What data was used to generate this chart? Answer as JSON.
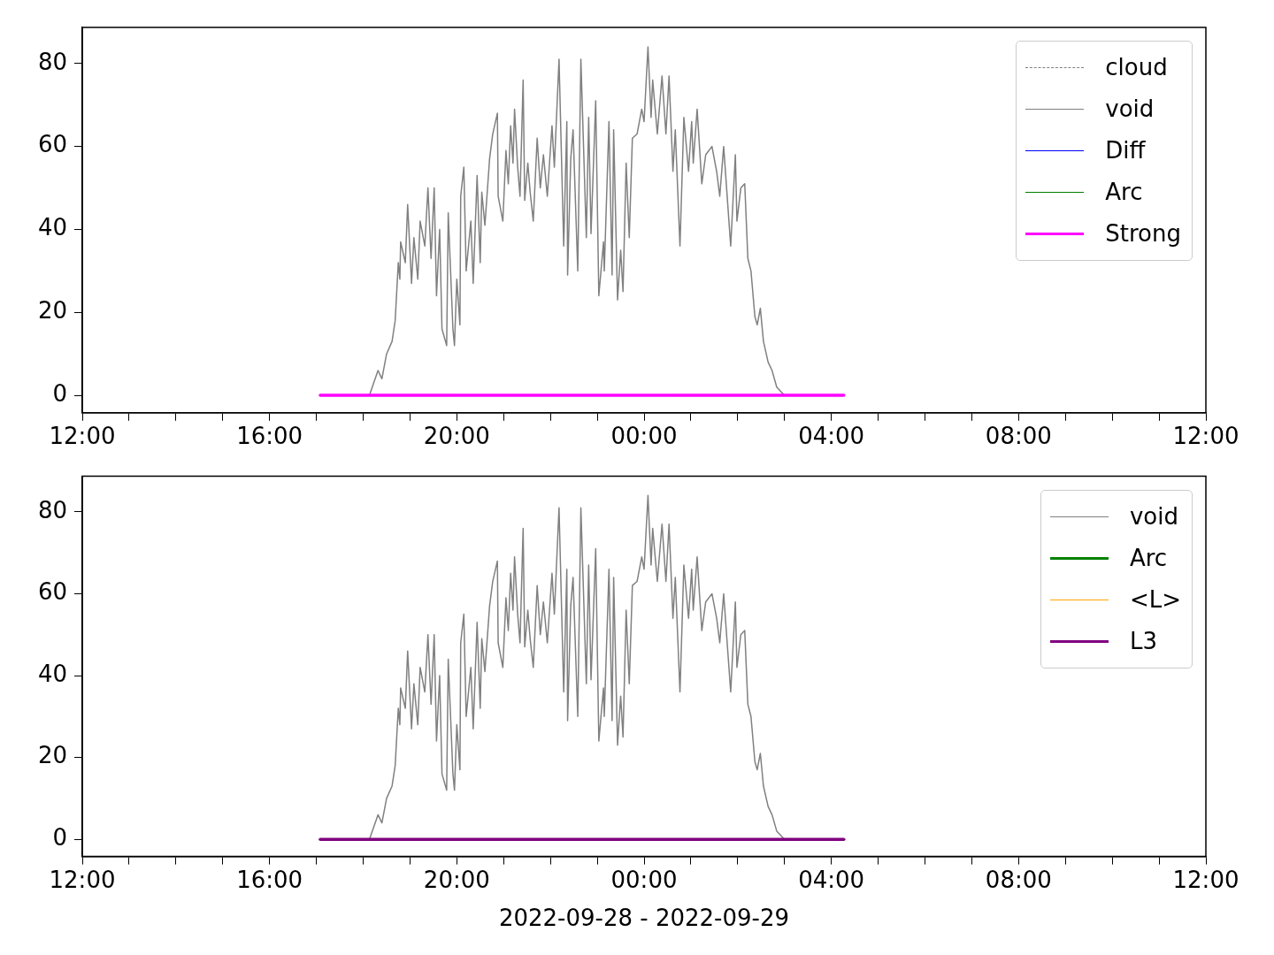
{
  "chart_data": [
    {
      "type": "line",
      "xlim": [
        "2022-09-28T12:00",
        "2022-09-29T12:00"
      ],
      "ylim": [
        -4.2,
        88.7
      ],
      "xticks": [
        {
          "value": "2022-09-28T12:00",
          "label": "12:00"
        },
        {
          "value": "2022-09-28T13:00",
          "label": null
        },
        {
          "value": "2022-09-28T14:00",
          "label": null
        },
        {
          "value": "2022-09-28T15:00",
          "label": null
        },
        {
          "value": "2022-09-28T16:00",
          "label": "16:00"
        },
        {
          "value": "2022-09-28T17:00",
          "label": null
        },
        {
          "value": "2022-09-28T18:00",
          "label": null
        },
        {
          "value": "2022-09-28T19:00",
          "label": null
        },
        {
          "value": "2022-09-28T20:00",
          "label": "20:00"
        },
        {
          "value": "2022-09-28T21:00",
          "label": null
        },
        {
          "value": "2022-09-28T22:00",
          "label": null
        },
        {
          "value": "2022-09-28T23:00",
          "label": null
        },
        {
          "value": "2022-09-29T00:00",
          "label": "00:00"
        },
        {
          "value": "2022-09-29T01:00",
          "label": null
        },
        {
          "value": "2022-09-29T02:00",
          "label": null
        },
        {
          "value": "2022-09-29T03:00",
          "label": null
        },
        {
          "value": "2022-09-29T04:00",
          "label": "04:00"
        },
        {
          "value": "2022-09-29T05:00",
          "label": null
        },
        {
          "value": "2022-09-29T06:00",
          "label": null
        },
        {
          "value": "2022-09-29T07:00",
          "label": null
        },
        {
          "value": "2022-09-29T08:00",
          "label": "08:00"
        },
        {
          "value": "2022-09-29T09:00",
          "label": null
        },
        {
          "value": "2022-09-29T10:00",
          "label": null
        },
        {
          "value": "2022-09-29T11:00",
          "label": null
        },
        {
          "value": "2022-09-29T12:00",
          "label": "12:00"
        }
      ],
      "yticks": [
        0,
        20,
        40,
        60,
        80
      ],
      "legend": "top right",
      "x": [
        "2022-09-28T18:08",
        "2022-09-28T18:19",
        "2022-09-28T18:24",
        "2022-09-28T18:30",
        "2022-09-28T18:37",
        "2022-09-28T18:41",
        "2022-09-28T18:45",
        "2022-09-28T18:47",
        "2022-09-28T18:48",
        "2022-09-28T18:54",
        "2022-09-28T18:57",
        "2022-09-28T19:02",
        "2022-09-28T19:05",
        "2022-09-28T19:10",
        "2022-09-28T19:13",
        "2022-09-28T19:19",
        "2022-09-28T19:23",
        "2022-09-28T19:27",
        "2022-09-28T19:31",
        "2022-09-28T19:34",
        "2022-09-28T19:38",
        "2022-09-28T19:41",
        "2022-09-28T19:47",
        "2022-09-28T19:49",
        "2022-09-28T19:55",
        "2022-09-28T19:57",
        "2022-09-28T20:00",
        "2022-09-28T20:04",
        "2022-09-28T20:05",
        "2022-09-28T20:09",
        "2022-09-28T20:12",
        "2022-09-28T20:18",
        "2022-09-28T20:21",
        "2022-09-28T20:26",
        "2022-09-28T20:30",
        "2022-09-28T20:32",
        "2022-09-28T20:36",
        "2022-09-28T20:42",
        "2022-09-28T20:46",
        "2022-09-28T20:52",
        "2022-09-28T20:53",
        "2022-09-28T20:59",
        "2022-09-28T21:03",
        "2022-09-28T21:06",
        "2022-09-28T21:09",
        "2022-09-28T21:12",
        "2022-09-28T21:14",
        "2022-09-28T21:18",
        "2022-09-28T21:21",
        "2022-09-28T21:25",
        "2022-09-28T21:27",
        "2022-09-28T21:31",
        "2022-09-28T21:34",
        "2022-09-28T21:38",
        "2022-09-28T21:43",
        "2022-09-28T21:47",
        "2022-09-28T21:51",
        "2022-09-28T21:56",
        "2022-09-28T22:02",
        "2022-09-28T22:05",
        "2022-09-28T22:11",
        "2022-09-28T22:17",
        "2022-09-28T22:21",
        "2022-09-28T22:22",
        "2022-09-28T22:26",
        "2022-09-28T22:29",
        "2022-09-28T22:35",
        "2022-09-28T22:39",
        "2022-09-28T22:46",
        "2022-09-28T22:49",
        "2022-09-28T22:52",
        "2022-09-28T22:58",
        "2022-09-28T23:02",
        "2022-09-28T23:08",
        "2022-09-28T23:09",
        "2022-09-28T23:15",
        "2022-09-28T23:19",
        "2022-09-28T23:21",
        "2022-09-28T23:26",
        "2022-09-28T23:30",
        "2022-09-28T23:33",
        "2022-09-28T23:37",
        "2022-09-28T23:41",
        "2022-09-28T23:45",
        "2022-09-28T23:51",
        "2022-09-28T23:57",
        "2022-09-29T00:00",
        "2022-09-29T00:05",
        "2022-09-29T00:09",
        "2022-09-29T00:11",
        "2022-09-29T00:17",
        "2022-09-29T00:23",
        "2022-09-29T00:28",
        "2022-09-29T00:32",
        "2022-09-29T00:37",
        "2022-09-29T00:40",
        "2022-09-29T00:46",
        "2022-09-29T00:51",
        "2022-09-29T00:57",
        "2022-09-29T01:01",
        "2022-09-29T01:03",
        "2022-09-29T01:08",
        "2022-09-29T01:14",
        "2022-09-29T01:19",
        "2022-09-29T01:27",
        "2022-09-29T01:33",
        "2022-09-29T01:37",
        "2022-09-29T01:42",
        "2022-09-29T01:51",
        "2022-09-29T01:57",
        "2022-09-29T01:59",
        "2022-09-29T02:04",
        "2022-09-29T02:09",
        "2022-09-29T02:13",
        "2022-09-29T02:17",
        "2022-09-29T02:22",
        "2022-09-29T02:25",
        "2022-09-29T02:29",
        "2022-09-29T02:33",
        "2022-09-29T02:39",
        "2022-09-29T02:44",
        "2022-09-29T02:50",
        "2022-09-29T02:55",
        "2022-09-29T03:00"
      ],
      "series": [
        {
          "name": "cloud",
          "color": "#808080",
          "line_style": "dashed",
          "values": [
            null,
            null,
            null,
            null,
            null,
            null,
            null,
            null,
            null,
            null,
            null,
            null,
            null,
            null,
            null,
            null,
            null,
            null,
            null,
            null,
            null,
            null,
            null,
            null,
            null,
            null,
            null,
            null,
            null,
            null,
            null,
            null,
            null,
            null,
            null,
            null,
            null,
            null,
            null,
            null,
            null,
            null,
            null,
            null,
            null,
            null,
            null,
            null,
            null,
            null,
            null,
            null,
            null,
            null,
            null,
            null,
            null,
            null,
            null,
            null,
            null,
            null,
            null,
            null,
            null,
            null,
            null,
            null,
            null,
            null,
            null,
            null,
            null,
            null,
            null,
            null,
            null,
            null,
            null,
            null,
            null,
            null,
            null,
            null,
            null,
            null,
            null,
            null,
            null,
            null,
            null,
            null,
            null,
            null,
            null,
            null,
            null,
            null,
            null,
            null,
            null,
            null,
            null,
            null,
            null,
            null,
            null,
            null,
            null,
            null,
            null,
            null,
            null,
            null,
            null,
            null,
            null,
            null,
            null,
            null,
            null,
            null,
            null,
            null
          ]
        },
        {
          "name": "void",
          "color": "#808080",
          "values": [
            0,
            6,
            4,
            10,
            13,
            18,
            32,
            28,
            37,
            32,
            46,
            27,
            38,
            28,
            42,
            36,
            50,
            33,
            50,
            24,
            40,
            16,
            12,
            44,
            16,
            12,
            28,
            17,
            48,
            55,
            30,
            42,
            27,
            53,
            32,
            49,
            41,
            57,
            63,
            68,
            48,
            42,
            59,
            51,
            65,
            56,
            69,
            55,
            48,
            76,
            47,
            56,
            49,
            42,
            62,
            50,
            58,
            48,
            65,
            55,
            81,
            36,
            66,
            29,
            57,
            64,
            30,
            81,
            38,
            67,
            39,
            71,
            24,
            37,
            30,
            66,
            29,
            64,
            23,
            35,
            25,
            56,
            38,
            62,
            63,
            69,
            66,
            84,
            67,
            76,
            63,
            77,
            63,
            77,
            54,
            64,
            36,
            67,
            54,
            66,
            56,
            69,
            51,
            58,
            60,
            54,
            48,
            60,
            36,
            58,
            42,
            50,
            51,
            33,
            30,
            19,
            17,
            21,
            13,
            8,
            6,
            2,
            1,
            0
          ]
        },
        {
          "name": "Diff",
          "color": "#0000ff",
          "values": [
            null,
            null,
            null,
            null,
            null,
            null,
            null,
            null,
            null,
            null,
            null,
            null,
            null,
            null,
            null,
            null,
            null,
            null,
            null,
            null,
            null,
            null,
            null,
            null,
            null,
            null,
            null,
            null,
            null,
            null,
            null,
            null,
            null,
            null,
            null,
            null,
            null,
            null,
            null,
            null,
            null,
            null,
            null,
            null,
            null,
            null,
            null,
            null,
            null,
            null,
            null,
            null,
            null,
            null,
            null,
            null,
            null,
            null,
            null,
            null,
            null,
            null,
            null,
            null,
            null,
            null,
            null,
            null,
            null,
            null,
            null,
            null,
            null,
            null,
            null,
            null,
            null,
            null,
            null,
            null,
            null,
            null,
            null,
            null,
            null,
            null,
            null,
            null,
            null,
            null,
            null,
            null,
            null,
            null,
            null,
            null,
            null,
            null,
            null,
            null,
            null,
            null,
            null,
            null,
            null,
            null,
            null,
            null,
            null,
            null,
            null,
            null,
            null,
            null,
            null,
            null,
            null,
            null,
            null,
            null,
            null,
            null,
            null,
            null
          ]
        },
        {
          "name": "Arc",
          "color": "#008000",
          "values": [
            null,
            null,
            null,
            null,
            null,
            null,
            null,
            null,
            null,
            null,
            null,
            null,
            null,
            null,
            null,
            null,
            null,
            null,
            null,
            null,
            null,
            null,
            null,
            null,
            null,
            null,
            null,
            null,
            null,
            null,
            null,
            null,
            null,
            null,
            null,
            null,
            null,
            null,
            null,
            null,
            null,
            null,
            null,
            null,
            null,
            null,
            null,
            null,
            null,
            null,
            null,
            null,
            null,
            null,
            null,
            null,
            null,
            null,
            null,
            null,
            null,
            null,
            null,
            null,
            null,
            null,
            null,
            null,
            null,
            null,
            null,
            null,
            null,
            null,
            null,
            null,
            null,
            null,
            null,
            null,
            null,
            null,
            null,
            null,
            null,
            null,
            null,
            null,
            null,
            null,
            null,
            null,
            null,
            null,
            null,
            null,
            null,
            null,
            null,
            null,
            null,
            null,
            null,
            null,
            null,
            null,
            null,
            null,
            null,
            null,
            null,
            null,
            null,
            null,
            null,
            null,
            null,
            null,
            null,
            null,
            null,
            null,
            null,
            null
          ]
        },
        {
          "name": "Strong",
          "color": "#ff00ff",
          "x": [
            "2022-09-28T17:05",
            "2022-09-29T04:16"
          ],
          "values": [
            0,
            0
          ]
        }
      ]
    },
    {
      "type": "line",
      "xlabel": "2022-09-28 - 2022-09-29",
      "xlim": [
        "2022-09-28T12:00",
        "2022-09-29T12:00"
      ],
      "ylim": [
        -4.2,
        88.7
      ],
      "xticks": [
        {
          "value": "2022-09-28T12:00",
          "label": "12:00"
        },
        {
          "value": "2022-09-28T13:00",
          "label": null
        },
        {
          "value": "2022-09-28T14:00",
          "label": null
        },
        {
          "value": "2022-09-28T15:00",
          "label": null
        },
        {
          "value": "2022-09-28T16:00",
          "label": "16:00"
        },
        {
          "value": "2022-09-28T17:00",
          "label": null
        },
        {
          "value": "2022-09-28T18:00",
          "label": null
        },
        {
          "value": "2022-09-28T19:00",
          "label": null
        },
        {
          "value": "2022-09-28T20:00",
          "label": "20:00"
        },
        {
          "value": "2022-09-28T21:00",
          "label": null
        },
        {
          "value": "2022-09-28T22:00",
          "label": null
        },
        {
          "value": "2022-09-28T23:00",
          "label": null
        },
        {
          "value": "2022-09-29T00:00",
          "label": "00:00"
        },
        {
          "value": "2022-09-29T01:00",
          "label": null
        },
        {
          "value": "2022-09-29T02:00",
          "label": null
        },
        {
          "value": "2022-09-29T03:00",
          "label": null
        },
        {
          "value": "2022-09-29T04:00",
          "label": "04:00"
        },
        {
          "value": "2022-09-29T05:00",
          "label": null
        },
        {
          "value": "2022-09-29T06:00",
          "label": null
        },
        {
          "value": "2022-09-29T07:00",
          "label": null
        },
        {
          "value": "2022-09-29T08:00",
          "label": "08:00"
        },
        {
          "value": "2022-09-29T09:00",
          "label": null
        },
        {
          "value": "2022-09-29T10:00",
          "label": null
        },
        {
          "value": "2022-09-29T11:00",
          "label": null
        },
        {
          "value": "2022-09-29T12:00",
          "label": "12:00"
        }
      ],
      "yticks": [
        0,
        20,
        40,
        60,
        80
      ],
      "legend": "top right",
      "x": [
        "2022-09-28T18:08",
        "2022-09-28T18:19",
        "2022-09-28T18:24",
        "2022-09-28T18:30",
        "2022-09-28T18:37",
        "2022-09-28T18:41",
        "2022-09-28T18:45",
        "2022-09-28T18:47",
        "2022-09-28T18:48",
        "2022-09-28T18:54",
        "2022-09-28T18:57",
        "2022-09-28T19:02",
        "2022-09-28T19:05",
        "2022-09-28T19:10",
        "2022-09-28T19:13",
        "2022-09-28T19:19",
        "2022-09-28T19:23",
        "2022-09-28T19:27",
        "2022-09-28T19:31",
        "2022-09-28T19:34",
        "2022-09-28T19:38",
        "2022-09-28T19:41",
        "2022-09-28T19:47",
        "2022-09-28T19:49",
        "2022-09-28T19:55",
        "2022-09-28T19:57",
        "2022-09-28T20:00",
        "2022-09-28T20:04",
        "2022-09-28T20:05",
        "2022-09-28T20:09",
        "2022-09-28T20:12",
        "2022-09-28T20:18",
        "2022-09-28T20:21",
        "2022-09-28T20:26",
        "2022-09-28T20:30",
        "2022-09-28T20:32",
        "2022-09-28T20:36",
        "2022-09-28T20:42",
        "2022-09-28T20:46",
        "2022-09-28T20:52",
        "2022-09-28T20:53",
        "2022-09-28T20:59",
        "2022-09-28T21:03",
        "2022-09-28T21:06",
        "2022-09-28T21:09",
        "2022-09-28T21:12",
        "2022-09-28T21:14",
        "2022-09-28T21:18",
        "2022-09-28T21:21",
        "2022-09-28T21:25",
        "2022-09-28T21:27",
        "2022-09-28T21:31",
        "2022-09-28T21:34",
        "2022-09-28T21:38",
        "2022-09-28T21:43",
        "2022-09-28T21:47",
        "2022-09-28T21:51",
        "2022-09-28T21:56",
        "2022-09-28T22:02",
        "2022-09-28T22:05",
        "2022-09-28T22:11",
        "2022-09-28T22:17",
        "2022-09-28T22:21",
        "2022-09-28T22:22",
        "2022-09-28T22:26",
        "2022-09-28T22:29",
        "2022-09-28T22:35",
        "2022-09-28T22:39",
        "2022-09-28T22:46",
        "2022-09-28T22:49",
        "2022-09-28T22:52",
        "2022-09-28T22:58",
        "2022-09-28T23:02",
        "2022-09-28T23:08",
        "2022-09-28T23:09",
        "2022-09-28T23:15",
        "2022-09-28T23:19",
        "2022-09-28T23:21",
        "2022-09-28T23:26",
        "2022-09-28T23:30",
        "2022-09-28T23:33",
        "2022-09-28T23:37",
        "2022-09-28T23:41",
        "2022-09-28T23:45",
        "2022-09-28T23:51",
        "2022-09-28T23:57",
        "2022-09-29T00:00",
        "2022-09-29T00:05",
        "2022-09-29T00:09",
        "2022-09-29T00:11",
        "2022-09-29T00:17",
        "2022-09-29T00:23",
        "2022-09-29T00:28",
        "2022-09-29T00:32",
        "2022-09-29T00:37",
        "2022-09-29T00:40",
        "2022-09-29T00:46",
        "2022-09-29T00:51",
        "2022-09-29T00:57",
        "2022-09-29T01:01",
        "2022-09-29T01:03",
        "2022-09-29T01:08",
        "2022-09-29T01:14",
        "2022-09-29T01:19",
        "2022-09-29T01:27",
        "2022-09-29T01:33",
        "2022-09-29T01:37",
        "2022-09-29T01:42",
        "2022-09-29T01:51",
        "2022-09-29T01:57",
        "2022-09-29T01:59",
        "2022-09-29T02:04",
        "2022-09-29T02:09",
        "2022-09-29T02:13",
        "2022-09-29T02:17",
        "2022-09-29T02:22",
        "2022-09-29T02:25",
        "2022-09-29T02:29",
        "2022-09-29T02:33",
        "2022-09-29T02:39",
        "2022-09-29T02:44",
        "2022-09-29T02:50",
        "2022-09-29T02:55",
        "2022-09-29T03:00"
      ],
      "series": [
        {
          "name": "void",
          "color": "#808080",
          "values": [
            0,
            6,
            4,
            10,
            13,
            18,
            32,
            28,
            37,
            32,
            46,
            27,
            38,
            28,
            42,
            36,
            50,
            33,
            50,
            24,
            40,
            16,
            12,
            44,
            16,
            12,
            28,
            17,
            48,
            55,
            30,
            42,
            27,
            53,
            32,
            49,
            41,
            57,
            63,
            68,
            48,
            42,
            59,
            51,
            65,
            56,
            69,
            55,
            48,
            76,
            47,
            56,
            49,
            42,
            62,
            50,
            58,
            48,
            65,
            55,
            81,
            36,
            66,
            29,
            57,
            64,
            30,
            81,
            38,
            67,
            39,
            71,
            24,
            37,
            30,
            66,
            29,
            64,
            23,
            35,
            25,
            56,
            38,
            62,
            63,
            69,
            66,
            84,
            67,
            76,
            63,
            77,
            63,
            77,
            54,
            64,
            36,
            67,
            54,
            66,
            56,
            69,
            51,
            58,
            60,
            54,
            48,
            60,
            36,
            58,
            42,
            50,
            51,
            33,
            30,
            19,
            17,
            21,
            13,
            8,
            6,
            2,
            1,
            0
          ]
        },
        {
          "name": "Arc",
          "color": "#008000",
          "values": [
            null,
            null,
            null,
            null,
            null,
            null,
            null,
            null,
            null,
            null,
            null,
            null,
            null,
            null,
            null,
            null,
            null,
            null,
            null,
            null,
            null,
            null,
            null,
            null,
            null,
            null,
            null,
            null,
            null,
            null,
            null,
            null,
            null,
            null,
            null,
            null,
            null,
            null,
            null,
            null,
            null,
            null,
            null,
            null,
            null,
            null,
            null,
            null,
            null,
            null,
            null,
            null,
            null,
            null,
            null,
            null,
            null,
            null,
            null,
            null,
            null,
            null,
            null,
            null,
            null,
            null,
            null,
            null,
            null,
            null,
            null,
            null,
            null,
            null,
            null,
            null,
            null,
            null,
            null,
            null,
            null,
            null,
            null,
            null,
            null,
            null,
            null,
            null,
            null,
            null,
            null,
            null,
            null,
            null,
            null,
            null,
            null,
            null,
            null,
            null,
            null,
            null,
            null,
            null,
            null,
            null,
            null,
            null,
            null,
            null,
            null,
            null,
            null,
            null,
            null,
            null,
            null,
            null,
            null,
            null,
            null,
            null,
            null,
            null
          ]
        },
        {
          "name": "<L>",
          "color": "#ffa500",
          "values": [
            null,
            null,
            null,
            null,
            null,
            null,
            null,
            null,
            null,
            null,
            null,
            null,
            null,
            null,
            null,
            null,
            null,
            null,
            null,
            null,
            null,
            null,
            null,
            null,
            null,
            null,
            null,
            null,
            null,
            null,
            null,
            null,
            null,
            null,
            null,
            null,
            null,
            null,
            null,
            null,
            null,
            null,
            null,
            null,
            null,
            null,
            null,
            null,
            null,
            null,
            null,
            null,
            null,
            null,
            null,
            null,
            null,
            null,
            null,
            null,
            null,
            null,
            null,
            null,
            null,
            null,
            null,
            null,
            null,
            null,
            null,
            null,
            null,
            null,
            null,
            null,
            null,
            null,
            null,
            null,
            null,
            null,
            null,
            null,
            null,
            null,
            null,
            null,
            null,
            null,
            null,
            null,
            null,
            null,
            null,
            null,
            null,
            null,
            null,
            null,
            null,
            null,
            null,
            null,
            null,
            null,
            null,
            null,
            null,
            null,
            null,
            null,
            null,
            null,
            null,
            null,
            null,
            null,
            null,
            null,
            null,
            null,
            null,
            null
          ]
        },
        {
          "name": "L3",
          "color": "#800080",
          "x": [
            "2022-09-28T17:05",
            "2022-09-29T04:16"
          ],
          "values": [
            0,
            0
          ]
        }
      ]
    }
  ]
}
